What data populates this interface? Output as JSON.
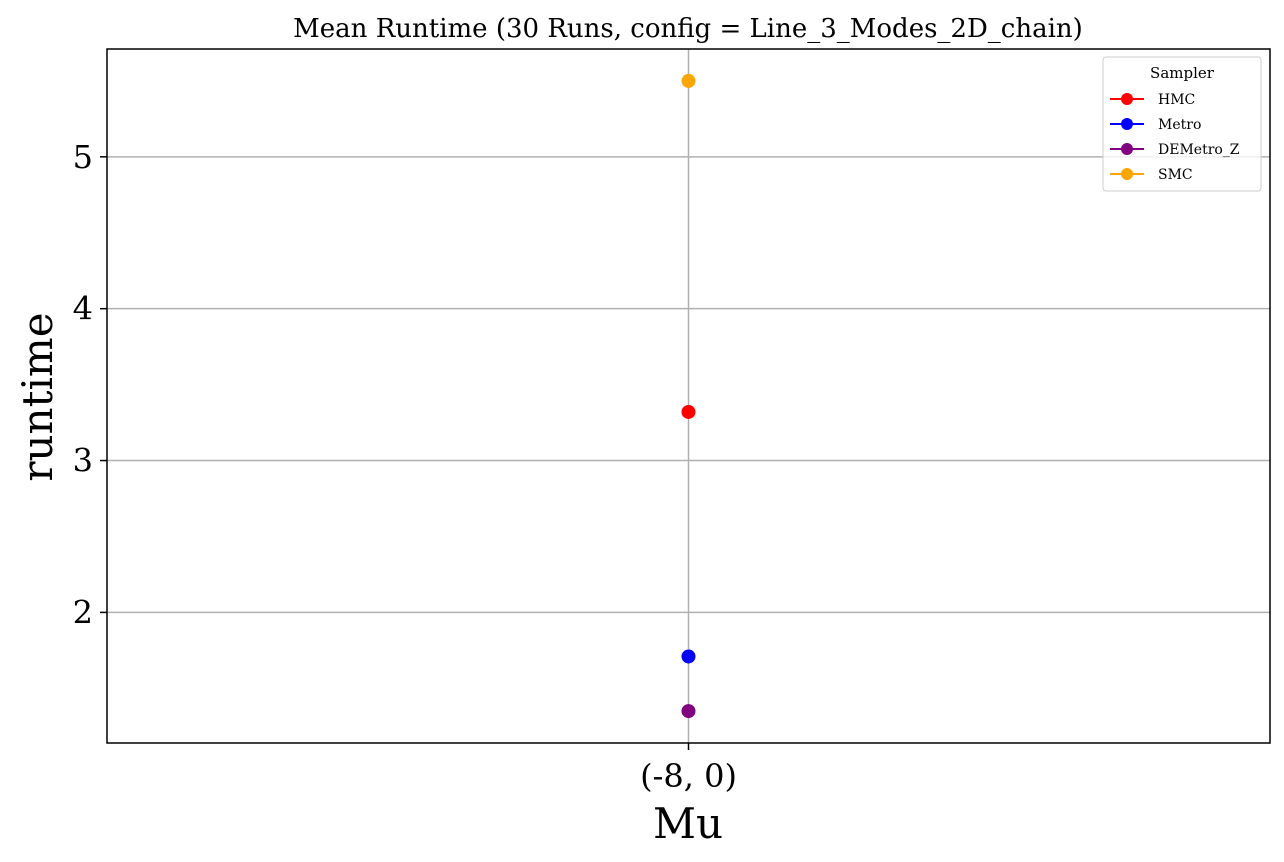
{
  "chart_data": {
    "type": "scatter",
    "title": "Mean Runtime (30 Runs, config = Line_3_Modes_2D_chain)",
    "xlabel": "Mu",
    "ylabel": "runtime",
    "categories": [
      "(-8, 0)"
    ],
    "yticks": [
      2,
      3,
      4,
      5
    ],
    "ylim": [
      1.14,
      5.71
    ],
    "grid": true,
    "legend": {
      "title": "Sampler",
      "placement": "top-right"
    },
    "series": [
      {
        "name": "HMC",
        "color": "#ff0000",
        "values": [
          3.32
        ]
      },
      {
        "name": "Metro",
        "color": "#0000ff",
        "values": [
          1.71
        ]
      },
      {
        "name": "DEMetro_Z",
        "color": "#800080",
        "values": [
          1.35
        ]
      },
      {
        "name": "SMC",
        "color": "#ffa500",
        "values": [
          5.5
        ]
      }
    ]
  }
}
